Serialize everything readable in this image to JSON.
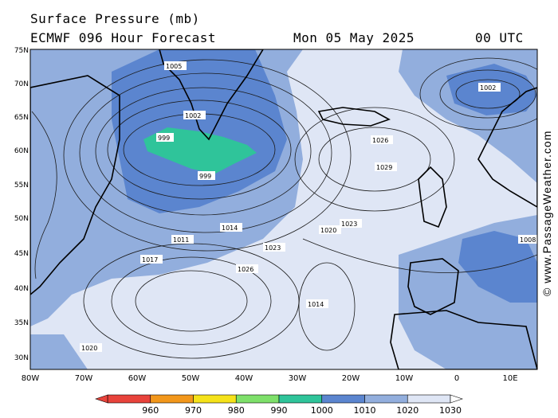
{
  "title_line1": "Surface Pressure (mb)",
  "title_line2": "ECMWF 096 Hour Forecast",
  "forecast_date": "Mon 05 May 2025",
  "forecast_time": "00 UTC",
  "credit": "© www.PassageWeather.com",
  "lat_labels": [
    "75N",
    "70N",
    "65N",
    "60N",
    "55N",
    "50N",
    "45N",
    "40N",
    "35N",
    "30N"
  ],
  "lon_labels": [
    "80W",
    "70W",
    "60W",
    "50W",
    "40W",
    "30W",
    "20W",
    "10W",
    "0",
    "10E"
  ],
  "legend_values": [
    "960",
    "970",
    "980",
    "990",
    "1000",
    "1010",
    "1020",
    "1030"
  ],
  "legend_colors": [
    "#e8433b",
    "#f2971b",
    "#f5e21a",
    "#7ee06a",
    "#2fc49a",
    "#5b85cf",
    "#92aedd",
    "#dfe6f5"
  ],
  "isobar_labels": [
    {
      "text": "1005",
      "left": true
    },
    {
      "text": "1014"
    },
    {
      "text": "1020"
    },
    {
      "text": "1023"
    },
    {
      "text": "1026"
    },
    {
      "text": "1017"
    },
    {
      "text": "1011"
    },
    {
      "text": "1008"
    },
    {
      "text": "1002"
    },
    {
      "text": "999"
    }
  ],
  "center_labels": [
    "999",
    "1029",
    "1002",
    "1026",
    "1020",
    "1014",
    "1023"
  ]
}
